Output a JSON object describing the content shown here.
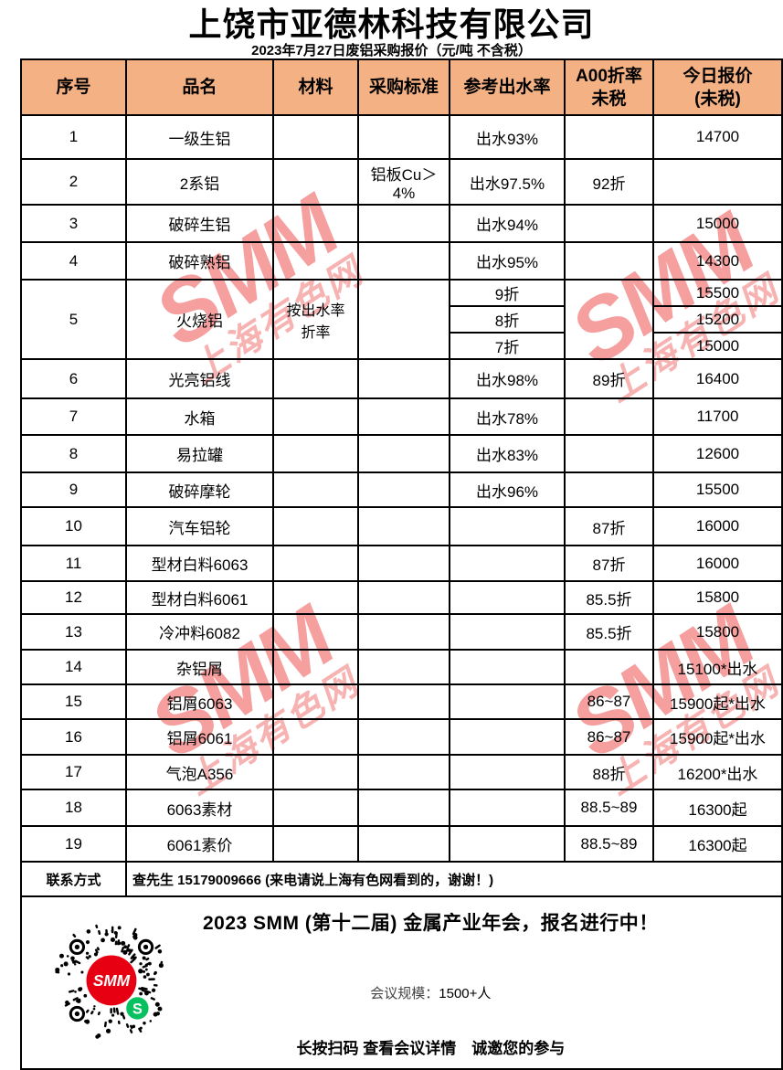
{
  "page": {
    "title": "上饶市亚德林科技有限公司",
    "subtitle": "2023年7月27日废铝采购报价（元/吨 不含税）"
  },
  "colors": {
    "header_bg": "#F4B183",
    "border": "#000000",
    "watermark_red": "#EC5050",
    "smm_logo_red": "#E60012",
    "wechat_green": "#07C160"
  },
  "watermark": {
    "main": "SMM",
    "sub": "上海有色网"
  },
  "table": {
    "headers": [
      "序号",
      "品名",
      "材料",
      "采购标准",
      "参考出水率",
      "A00折率\n未税",
      "今日报价\n(未税)"
    ],
    "rows": [
      {
        "no": "1",
        "name": "一级生铝",
        "material": "",
        "standard": "",
        "yield": "出水93%",
        "rate": "",
        "price": "14700"
      },
      {
        "no": "2",
        "name": "2系铝",
        "material": "",
        "standard": "铝板Cu＞\n4%",
        "yield": "出水97.5%",
        "rate": "92折",
        "price": ""
      },
      {
        "no": "3",
        "name": "破碎生铝",
        "material": "",
        "standard": "",
        "yield": "出水94%",
        "rate": "",
        "price": "15000"
      },
      {
        "no": "4",
        "name": "破碎熟铝",
        "material": "",
        "standard": "",
        "yield": "出水95%",
        "rate": "",
        "price": "14300"
      },
      {
        "no": "5",
        "name": "火烧铝",
        "material": "按出水率\n折率",
        "standard": "",
        "rate": "",
        "sub_rows": [
          {
            "yield": "9折",
            "price": "15500"
          },
          {
            "yield": "8折",
            "price": "15200"
          },
          {
            "yield": "7折",
            "price": "15000"
          }
        ]
      },
      {
        "no": "6",
        "name": "光亮铝线",
        "material": "",
        "standard": "",
        "yield": "出水98%",
        "rate": "89折",
        "price": "16400"
      },
      {
        "no": "7",
        "name": "水箱",
        "material": "",
        "standard": "",
        "yield": "出水78%",
        "rate": "",
        "price": "11700"
      },
      {
        "no": "8",
        "name": "易拉罐",
        "material": "",
        "standard": "",
        "yield": "出水83%",
        "rate": "",
        "price": "12600"
      },
      {
        "no": "9",
        "name": "破碎摩轮",
        "material": "",
        "standard": "",
        "yield": "出水96%",
        "rate": "",
        "price": "15500"
      },
      {
        "no": "10",
        "name": "汽车铝轮",
        "material": "",
        "standard": "",
        "yield": "",
        "rate": "87折",
        "price": "16000"
      },
      {
        "no": "11",
        "name": "型材白料6063",
        "material": "",
        "standard": "",
        "yield": "",
        "rate": "87折",
        "price": "16000"
      },
      {
        "no": "12",
        "name": "型材白料6061",
        "material": "",
        "standard": "",
        "yield": "",
        "rate": "85.5折",
        "price": "15800"
      },
      {
        "no": "13",
        "name": "冷冲料6082",
        "material": "",
        "standard": "",
        "yield": "",
        "rate": "85.5折",
        "price": "15800"
      },
      {
        "no": "14",
        "name": "杂铝屑",
        "material": "",
        "standard": "",
        "yield": "",
        "rate": "",
        "price": "15100*出水"
      },
      {
        "no": "15",
        "name": "铝屑6063",
        "material": "",
        "standard": "",
        "yield": "",
        "rate": "86~87",
        "price": "15900起*出水"
      },
      {
        "no": "16",
        "name": "铝屑6061",
        "material": "",
        "standard": "",
        "yield": "",
        "rate": "86~87",
        "price": "15900起*出水"
      },
      {
        "no": "17",
        "name": "气泡A356",
        "material": "",
        "standard": "",
        "yield": "",
        "rate": "88折",
        "price": "16200*出水"
      },
      {
        "no": "18",
        "name": "6063素材",
        "material": "",
        "standard": "",
        "yield": "",
        "rate": "88.5~89",
        "price": "16300起"
      },
      {
        "no": "19",
        "name": "6061素价",
        "material": "",
        "standard": "",
        "yield": "",
        "rate": "88.5~89",
        "price": "16300起"
      }
    ]
  },
  "contact": {
    "label": "联系方式",
    "value": "查先生 15179009666  (来电请说上海有色网看到的，谢谢！)"
  },
  "banner": {
    "line1": "2023 SMM (第十二届) 金属产业年会，报名进行中！",
    "line2_label": "会议规模：",
    "line2_value": "1500+人",
    "line3": "长按扫码 查看会议详情　诚邀您的参与",
    "qr_logo": "SMM",
    "qr_badge": "S"
  }
}
